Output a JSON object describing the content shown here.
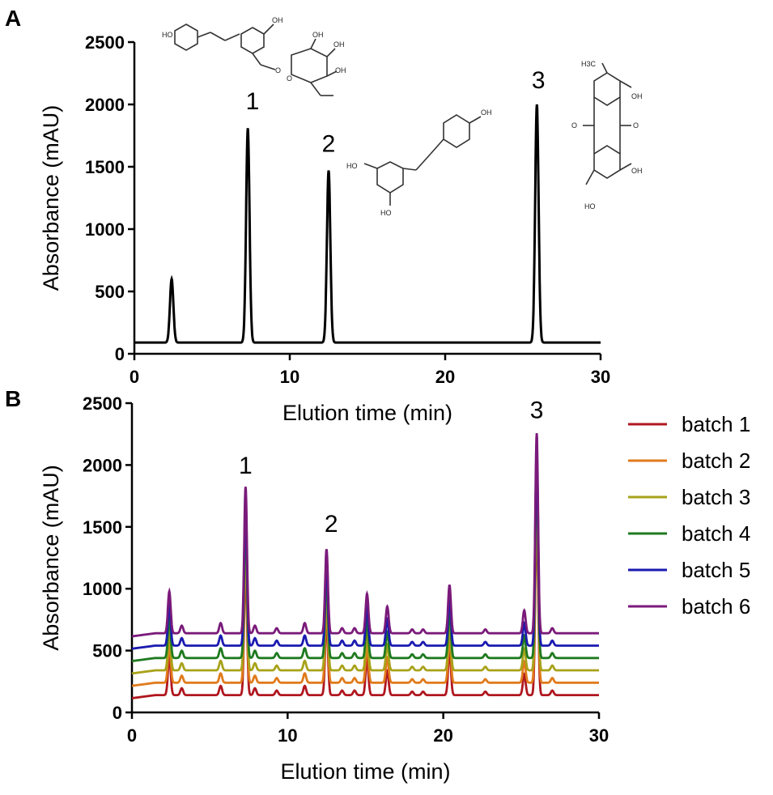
{
  "panels": {
    "a": {
      "letter": "A"
    },
    "b": {
      "letter": "B"
    }
  },
  "structures": {
    "polydatin": {
      "labels": [
        "HO",
        "OH",
        "O",
        "O",
        "OH",
        "OH",
        "OH"
      ]
    },
    "resveratrol": {
      "labels": [
        "OH",
        "HO",
        "HO"
      ]
    },
    "emodin": {
      "labels": [
        "H3C",
        "OH",
        "O",
        "O",
        "OH",
        "HO"
      ]
    }
  },
  "chart_data": [
    {
      "type": "line",
      "panel": "A",
      "xlabel": "Elution time (min)",
      "ylabel": "Absorbance (mAU)",
      "xlim": [
        0,
        30
      ],
      "ylim": [
        0,
        2500
      ],
      "xticks": [
        0,
        10,
        20,
        30
      ],
      "yticks": [
        0,
        500,
        1000,
        1500,
        2000,
        2500
      ],
      "baseline": 90,
      "series": [
        {
          "name": "",
          "color": "#000000",
          "peaks": [
            {
              "t": 2.4,
              "height": 600
            },
            {
              "t": 7.3,
              "height": 1810
            },
            {
              "t": 12.5,
              "height": 1470
            },
            {
              "t": 25.9,
              "height": 2000
            }
          ]
        }
      ],
      "annotations": [
        {
          "text": "1",
          "x": 7.6,
          "y": 1960
        },
        {
          "text": "2",
          "x": 12.5,
          "y": 1620
        },
        {
          "text": "3",
          "x": 26.0,
          "y": 2130
        }
      ]
    },
    {
      "type": "line",
      "panel": "B",
      "xlabel": "Elution time (min)",
      "ylabel": "Absorbance (mAU)",
      "xlim": [
        0,
        30
      ],
      "ylim": [
        0,
        2500
      ],
      "xticks": [
        0,
        10,
        20,
        30
      ],
      "yticks": [
        0,
        500,
        1000,
        1500,
        2000,
        2500
      ],
      "legend_position": "right",
      "series": [
        {
          "name": "batch 1",
          "color": "#b0171f",
          "baseline": 140
        },
        {
          "name": "batch 2",
          "color": "#e07b1c",
          "baseline": 240
        },
        {
          "name": "batch 3",
          "color": "#a8a21a",
          "baseline": 340
        },
        {
          "name": "batch 4",
          "color": "#1f7a1f",
          "baseline": 440
        },
        {
          "name": "batch 5",
          "color": "#1a1ab0",
          "baseline": 540
        },
        {
          "name": "batch 6",
          "color": "#7a1a7a",
          "baseline": 640
        }
      ],
      "peaks_above_baseline": [
        {
          "t": 2.4,
          "height": 330
        },
        {
          "t": 3.2,
          "height": 60
        },
        {
          "t": 5.7,
          "height": 80
        },
        {
          "t": 7.3,
          "height": 1150
        },
        {
          "t": 7.9,
          "height": 60
        },
        {
          "t": 9.3,
          "height": 40
        },
        {
          "t": 11.1,
          "height": 80
        },
        {
          "t": 12.5,
          "height": 660
        },
        {
          "t": 13.5,
          "height": 40
        },
        {
          "t": 14.3,
          "height": 40
        },
        {
          "t": 15.1,
          "height": 310
        },
        {
          "t": 16.4,
          "height": 210
        },
        {
          "t": 18.0,
          "height": 30
        },
        {
          "t": 18.7,
          "height": 30
        },
        {
          "t": 20.4,
          "height": 380
        },
        {
          "t": 22.7,
          "height": 30
        },
        {
          "t": 25.2,
          "height": 180
        },
        {
          "t": 26.0,
          "height": 1570
        },
        {
          "t": 27.0,
          "height": 40
        }
      ],
      "annotations": [
        {
          "text": "1",
          "x": 7.3,
          "y": 1930
        },
        {
          "text": "2",
          "x": 12.8,
          "y": 1460
        },
        {
          "text": "3",
          "x": 26.0,
          "y": 2380
        }
      ]
    }
  ]
}
